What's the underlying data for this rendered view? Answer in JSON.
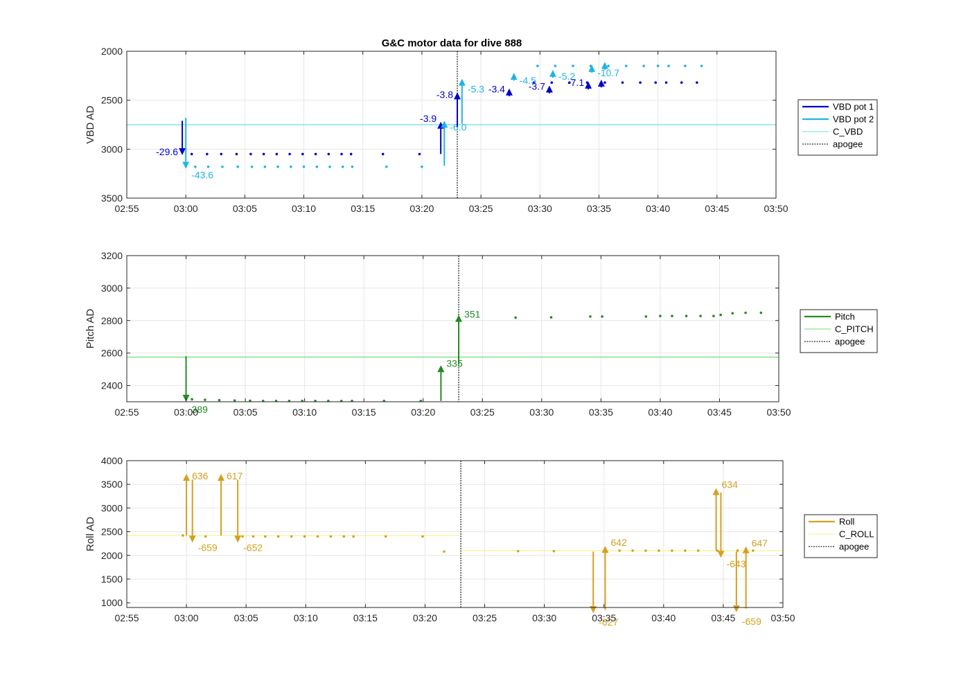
{
  "title": "G&C motor data for dive 888",
  "colors": {
    "vbd1": "#0000cd",
    "vbd2": "#1fb4e6",
    "c_vbd": "#66e0e8",
    "pitch": "#228b22",
    "c_pitch": "#70e070",
    "roll": "#d4a020",
    "c_roll": "#f5f08a",
    "apogee": "#505050"
  },
  "chart_data": [
    {
      "type": "scatter",
      "id": "vbd",
      "ylabel": "VBD AD",
      "xlim": [
        175,
        230
      ],
      "ylim": [
        2000,
        3500
      ],
      "yreverse": true,
      "grid": true,
      "legend_position": "right",
      "xticks": [
        175,
        180,
        185,
        190,
        195,
        200,
        205,
        210,
        215,
        220,
        225,
        230
      ],
      "xticklabels": [
        "02:55",
        "03:00",
        "03:05",
        "03:10",
        "03:15",
        "03:20",
        "03:25",
        "03:30",
        "03:35",
        "03:40",
        "03:45",
        "03:50"
      ],
      "yticks": [
        2000,
        2500,
        3000,
        3500
      ],
      "yticklabels": [
        "2000",
        "2500",
        "3000",
        "3500"
      ],
      "apogee": 203.0,
      "hline": {
        "name": "C_VBD",
        "y": 2750,
        "color_key": "c_vbd"
      },
      "legend": [
        {
          "label": "VBD pot 1",
          "style": "thick",
          "color_key": "vbd1"
        },
        {
          "label": "VBD pot 2",
          "style": "thick",
          "color_key": "vbd2"
        },
        {
          "label": "C_VBD",
          "style": "thin",
          "color_key": "c_vbd"
        },
        {
          "label": "apogee",
          "style": "dotted",
          "color_key": "apogee"
        }
      ],
      "series": [
        {
          "name": "VBD pot 1",
          "color_key": "vbd1",
          "x": [
            180.5,
            181.8,
            183.0,
            184.3,
            185.5,
            186.6,
            187.7,
            188.8,
            189.9,
            191.0,
            192.1,
            193.2,
            194.0,
            196.7,
            199.8,
            209.5,
            211.0,
            212.5,
            214.0,
            215.5,
            217.0,
            218.5,
            219.8,
            220.7,
            222.0,
            223.3
          ],
          "y": [
            3050,
            3050,
            3050,
            3050,
            3050,
            3050,
            3050,
            3050,
            3050,
            3050,
            3050,
            3050,
            3050,
            3050,
            3050,
            2320,
            2320,
            2320,
            2320,
            2320,
            2320,
            2320,
            2320,
            2320,
            2320,
            2320
          ]
        },
        {
          "name": "VBD pot 2",
          "color_key": "vbd2",
          "x": [
            180.8,
            181.9,
            183.1,
            184.4,
            185.6,
            186.7,
            187.8,
            188.9,
            190.0,
            191.1,
            192.2,
            193.3,
            194.1,
            197.0,
            200.0,
            209.8,
            211.3,
            212.8,
            214.3,
            215.8,
            217.3,
            218.8,
            220.0,
            220.9,
            222.3,
            223.7
          ],
          "y": [
            3180,
            3180,
            3180,
            3180,
            3180,
            3180,
            3180,
            3180,
            3180,
            3180,
            3180,
            3180,
            3180,
            3180,
            3180,
            2150,
            2150,
            2150,
            2150,
            2150,
            2150,
            2150,
            2150,
            2150,
            2150,
            2150
          ]
        }
      ],
      "arrows": [
        {
          "x": 179.7,
          "y0": 2710,
          "y1": 3060,
          "label": "-29.6",
          "color_key": "vbd1",
          "label_side": "left",
          "label_dy": 0
        },
        {
          "x": 180.0,
          "y0": 2680,
          "y1": 3200,
          "label": "-43.6",
          "color_key": "vbd2",
          "label_side": "right",
          "label_dy": 14
        },
        {
          "x": 201.6,
          "y0": 3050,
          "y1": 2720,
          "label": "-3.9",
          "color_key": "vbd1",
          "label_side": "left",
          "label_dy": 0
        },
        {
          "x": 201.9,
          "y0": 3170,
          "y1": 2710,
          "label": "-6.0",
          "color_key": "vbd2",
          "label_side": "right",
          "label_dy": 14
        },
        {
          "x": 203.0,
          "y0": 2770,
          "y1": 2420,
          "label": "-3.8",
          "color_key": "vbd1",
          "label_side": "left",
          "label_dy": 8
        },
        {
          "x": 203.4,
          "y0": 2740,
          "y1": 2280,
          "label": "-5.3",
          "color_key": "vbd2",
          "label_side": "right",
          "label_dy": 20
        },
        {
          "x": 207.4,
          "y0": 2460,
          "y1": 2380,
          "label": "-3.4",
          "color_key": "vbd1",
          "label_side": "left",
          "label_dy": 6
        },
        {
          "x": 207.8,
          "y0": 2300,
          "y1": 2220,
          "label": "-4.5",
          "color_key": "vbd2",
          "label_side": "right",
          "label_dy": 16
        },
        {
          "x": 210.8,
          "y0": 2430,
          "y1": 2350,
          "label": "-3.7",
          "color_key": "vbd1",
          "label_side": "left",
          "label_dy": 6
        },
        {
          "x": 211.1,
          "y0": 2270,
          "y1": 2190,
          "label": "-5.2",
          "color_key": "vbd2",
          "label_side": "right",
          "label_dy": 14
        },
        {
          "x": 214.1,
          "y0": 2390,
          "y1": 2310,
          "label": "-7.1",
          "color_key": "vbd1",
          "label_side": "left",
          "label_dy": 6
        },
        {
          "x": 214.4,
          "y0": 2220,
          "y1": 2140,
          "label": "-10.7",
          "color_key": "vbd2",
          "label_side": "right",
          "label_dy": 16
        },
        {
          "x": 215.2,
          "y0": 2370,
          "y1": 2290,
          "label": "",
          "color_key": "vbd1",
          "label_side": "right",
          "label_dy": 0
        },
        {
          "x": 215.5,
          "y0": 2190,
          "y1": 2110,
          "label": "",
          "color_key": "vbd2",
          "label_side": "right",
          "label_dy": 0
        }
      ]
    },
    {
      "type": "scatter",
      "id": "pitch",
      "ylabel": "Pitch AD",
      "xlim": [
        175,
        230
      ],
      "ylim": [
        2300,
        3200
      ],
      "yreverse": false,
      "grid": true,
      "legend_position": "right",
      "xticks": [
        175,
        180,
        185,
        190,
        195,
        200,
        205,
        210,
        215,
        220,
        225,
        230
      ],
      "xticklabels": [
        "02:55",
        "03:00",
        "03:05",
        "03:10",
        "03:15",
        "03:20",
        "03:25",
        "03:30",
        "03:35",
        "03:40",
        "03:45",
        "03:50"
      ],
      "yticks": [
        2400,
        2600,
        2800,
        3000,
        3200
      ],
      "yticklabels": [
        "2400",
        "2600",
        "2800",
        "3000",
        "3200"
      ],
      "apogee": 203.0,
      "hline": {
        "name": "C_PITCH",
        "y": 2575,
        "color_key": "c_pitch"
      },
      "legend": [
        {
          "label": "Pitch",
          "style": "thick",
          "color_key": "pitch"
        },
        {
          "label": "C_PITCH",
          "style": "thin",
          "color_key": "c_pitch"
        },
        {
          "label": "apogee",
          "style": "dotted",
          "color_key": "apogee"
        }
      ],
      "series": [
        {
          "name": "Pitch",
          "color_key": "pitch",
          "x": [
            180.5,
            181.6,
            182.8,
            184.1,
            185.4,
            186.5,
            187.6,
            188.7,
            189.8,
            190.9,
            192.0,
            193.1,
            194.0,
            196.7,
            199.8,
            207.8,
            210.8,
            214.1,
            215.1,
            218.8,
            220.0,
            221.0,
            222.2,
            223.4,
            224.5,
            225.1,
            226.1,
            227.2,
            228.5
          ],
          "y": [
            2315,
            2312,
            2310,
            2308,
            2306,
            2305,
            2305,
            2305,
            2305,
            2305,
            2305,
            2305,
            2305,
            2305,
            2305,
            2818,
            2820,
            2825,
            2825,
            2825,
            2828,
            2828,
            2828,
            2828,
            2828,
            2835,
            2845,
            2848,
            2848
          ]
        }
      ],
      "arrows": [
        {
          "x": 180.0,
          "y0": 2580,
          "y1": 2300,
          "label": "389",
          "color_key": "pitch",
          "label_side": "right",
          "label_dy": 16
        },
        {
          "x": 201.5,
          "y0": 2305,
          "y1": 2525,
          "label": "335",
          "color_key": "pitch",
          "label_side": "right",
          "label_dy": 2
        },
        {
          "x": 203.0,
          "y0": 2530,
          "y1": 2835,
          "label": "351",
          "color_key": "pitch",
          "label_side": "right",
          "label_dy": 4
        }
      ]
    },
    {
      "type": "scatter",
      "id": "roll",
      "ylabel": "Roll AD",
      "xlim": [
        175,
        230
      ],
      "ylim": [
        900,
        4000
      ],
      "yreverse": false,
      "grid": true,
      "legend_position": "right",
      "xticks": [
        175,
        180,
        185,
        190,
        195,
        200,
        205,
        210,
        215,
        220,
        225,
        230
      ],
      "xticklabels": [
        "02:55",
        "03:00",
        "03:05",
        "03:10",
        "03:15",
        "03:20",
        "03:25",
        "03:30",
        "03:35",
        "03:40",
        "03:45",
        "03:50"
      ],
      "yticks": [
        1000,
        1500,
        2000,
        2500,
        3000,
        3500,
        4000
      ],
      "yticklabels": [
        "1000",
        "1500",
        "2000",
        "2500",
        "3000",
        "3500",
        "4000"
      ],
      "apogee": 203.0,
      "hline_segments": [
        {
          "x0": 175,
          "x1": 203.0,
          "y": 2420
        },
        {
          "x0": 203.0,
          "x1": 230,
          "y": 2100
        }
      ],
      "hline": {
        "name": "C_ROLL",
        "y": 2100,
        "color_key": "c_roll"
      },
      "legend": [
        {
          "label": "Roll",
          "style": "thick",
          "color_key": "roll"
        },
        {
          "label": "C_ROLL",
          "style": "thin",
          "color_key": "c_roll"
        },
        {
          "label": "apogee",
          "style": "dotted",
          "color_key": "apogee"
        }
      ],
      "series": [
        {
          "name": "Roll",
          "color_key": "roll",
          "x": [
            179.7,
            181.6,
            184.7,
            185.6,
            186.6,
            187.7,
            188.8,
            189.9,
            191.0,
            192.1,
            193.2,
            194.0,
            196.7,
            199.8,
            201.6,
            207.8,
            210.8,
            216.3,
            217.4,
            218.5,
            219.6,
            220.7,
            221.8,
            222.9,
            224.5,
            226.2,
            227.5
          ],
          "y": [
            2420,
            2400,
            2400,
            2400,
            2400,
            2400,
            2400,
            2400,
            2400,
            2400,
            2400,
            2400,
            2400,
            2400,
            2080,
            2090,
            2090,
            2100,
            2100,
            2100,
            2100,
            2100,
            2100,
            2100,
            2100,
            2100,
            2100
          ]
        }
      ],
      "arrows": [
        {
          "x": 180.0,
          "y0": 2420,
          "y1": 3720,
          "label": "636",
          "color_key": "roll",
          "label_side": "right",
          "label_dy": 8
        },
        {
          "x": 180.5,
          "y0": 3600,
          "y1": 2270,
          "label": "-659",
          "color_key": "roll",
          "label_side": "right",
          "label_dy": 12
        },
        {
          "x": 182.9,
          "y0": 2420,
          "y1": 3720,
          "label": "617",
          "color_key": "roll",
          "label_side": "right",
          "label_dy": 8
        },
        {
          "x": 184.3,
          "y0": 3600,
          "y1": 2270,
          "label": "-652",
          "color_key": "roll",
          "label_side": "right",
          "label_dy": 12
        },
        {
          "x": 214.1,
          "y0": 2080,
          "y1": 780,
          "label": "-627",
          "color_key": "roll",
          "label_side": "right",
          "label_dy": 18
        },
        {
          "x": 215.1,
          "y0": 850,
          "y1": 2200,
          "label": "642",
          "color_key": "roll",
          "label_side": "right",
          "label_dy": 0
        },
        {
          "x": 224.4,
          "y0": 2100,
          "y1": 3420,
          "label": "634",
          "color_key": "roll",
          "label_side": "right",
          "label_dy": 0
        },
        {
          "x": 224.8,
          "y0": 3330,
          "y1": 1950,
          "label": "-643",
          "color_key": "roll",
          "label_side": "right",
          "label_dy": 14
        },
        {
          "x": 226.1,
          "y0": 2080,
          "y1": 800,
          "label": "-659",
          "color_key": "roll",
          "label_side": "right",
          "label_dy": 18
        },
        {
          "x": 226.9,
          "y0": 880,
          "y1": 2190,
          "label": "647",
          "color_key": "roll",
          "label_side": "right",
          "label_dy": 0
        }
      ]
    }
  ]
}
